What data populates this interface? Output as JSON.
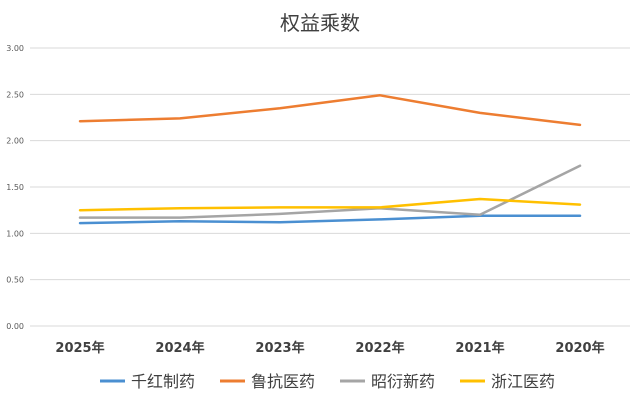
{
  "chart_data": {
    "type": "line",
    "title": "权益乘数",
    "xlabel": "",
    "ylabel": "",
    "categories": [
      "2025年",
      "2024年",
      "2023年",
      "2022年",
      "2021年",
      "2020年"
    ],
    "ylim": [
      0,
      3
    ],
    "yticks": [
      "0.00",
      "0.50",
      "1.00",
      "1.50",
      "2.00",
      "2.50",
      "3.00"
    ],
    "grid": true,
    "legend": "bottom",
    "series": [
      {
        "name": "千红制药",
        "color": "#4a8fd1",
        "values": [
          1.11,
          1.13,
          1.12,
          1.15,
          1.19,
          1.19
        ]
      },
      {
        "name": "鲁抗医药",
        "color": "#ed7d31",
        "values": [
          2.21,
          2.24,
          2.35,
          2.49,
          2.3,
          2.17
        ]
      },
      {
        "name": "昭衍新药",
        "color": "#a5a5a5",
        "values": [
          1.17,
          1.17,
          1.21,
          1.27,
          1.2,
          1.73
        ]
      },
      {
        "name": "浙江医药",
        "color": "#ffc000",
        "values": [
          1.25,
          1.27,
          1.28,
          1.28,
          1.37,
          1.31
        ]
      }
    ]
  }
}
